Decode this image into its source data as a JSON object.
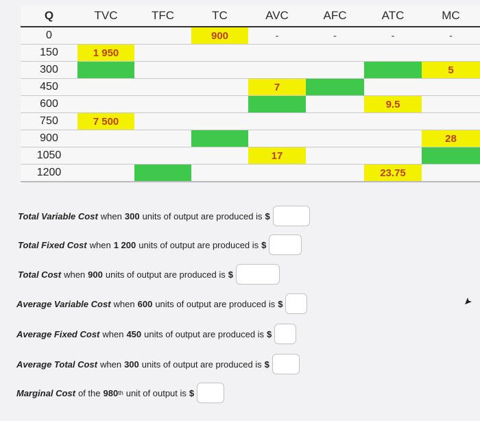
{
  "table": {
    "headers": [
      "Q",
      "TVC",
      "TFC",
      "TC",
      "AVC",
      "AFC",
      "ATC",
      "MC"
    ],
    "rows": [
      [
        "0",
        "",
        "",
        "900",
        "-",
        "-",
        "-",
        "-"
      ],
      [
        "150",
        "1 950",
        "",
        "",
        "",
        "",
        "",
        ""
      ],
      [
        "300",
        "",
        "",
        "",
        "",
        "",
        "",
        "5"
      ],
      [
        "450",
        "",
        "",
        "",
        "7",
        "",
        "",
        ""
      ],
      [
        "600",
        "",
        "",
        "",
        "",
        "",
        "9.5",
        ""
      ],
      [
        "750",
        "7 500",
        "",
        "",
        "",
        "",
        "",
        ""
      ],
      [
        "900",
        "",
        "",
        "",
        "",
        "",
        "",
        "28"
      ],
      [
        "1050",
        "",
        "",
        "",
        "17",
        "",
        "",
        ""
      ],
      [
        "1200",
        "",
        "",
        "",
        "",
        "",
        "23.75",
        ""
      ]
    ]
  },
  "questions": [
    {
      "label": "Total Variable Cost",
      "mid": "when",
      "num": "300",
      "rest": "units of output are produced is",
      "dollar": "$"
    },
    {
      "label": "Total Fixed Cost",
      "mid": "when",
      "num": "1 200",
      "rest": "units of output are produced is",
      "dollar": "$"
    },
    {
      "label": "Total Cost",
      "mid": "when",
      "num": "900",
      "rest": "units of output are produced is",
      "dollar": "$"
    },
    {
      "label": "Average Variable Cost",
      "mid": "when",
      "num": "600",
      "rest": "units of output are produced is",
      "dollar": "$"
    },
    {
      "label": "Average Fixed Cost",
      "mid": "when",
      "num": "450",
      "rest": "units of output are produced is",
      "dollar": "$"
    },
    {
      "label": "Average Total Cost",
      "mid": "when",
      "num": "300",
      "rest": "units of output are produced is",
      "dollar": "$"
    },
    {
      "label": "Marginal Cost",
      "mid": "of the",
      "num": "980",
      "sup": "th",
      "rest": "unit of output is",
      "dollar": "$"
    }
  ],
  "colors": {
    "yellow": "#f4f100",
    "green": "#3fc94c",
    "given_text": "#b8431d"
  },
  "icons": {
    "cursor": "mouse-pointer-icon"
  }
}
